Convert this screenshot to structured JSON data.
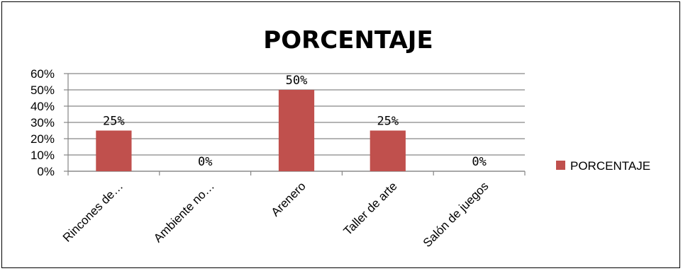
{
  "chart_data": {
    "type": "bar",
    "title": "PORCENTAJE",
    "categories": [
      "Rincones de…",
      "Ambiente no…",
      "Arenero",
      "Taller de arte",
      "Salón de juegos"
    ],
    "series": [
      {
        "name": "PORCENTAJE",
        "values": [
          25,
          0,
          50,
          25,
          0
        ],
        "color": "#c0504d"
      }
    ],
    "data_labels": [
      "25%",
      "0%",
      "50%",
      "25%",
      "0%"
    ],
    "yticks": [
      "0%",
      "10%",
      "20%",
      "30%",
      "40%",
      "50%",
      "60%"
    ],
    "ylim": [
      0,
      60
    ],
    "grid": true,
    "legend": "right",
    "xlabel": "",
    "ylabel": ""
  }
}
